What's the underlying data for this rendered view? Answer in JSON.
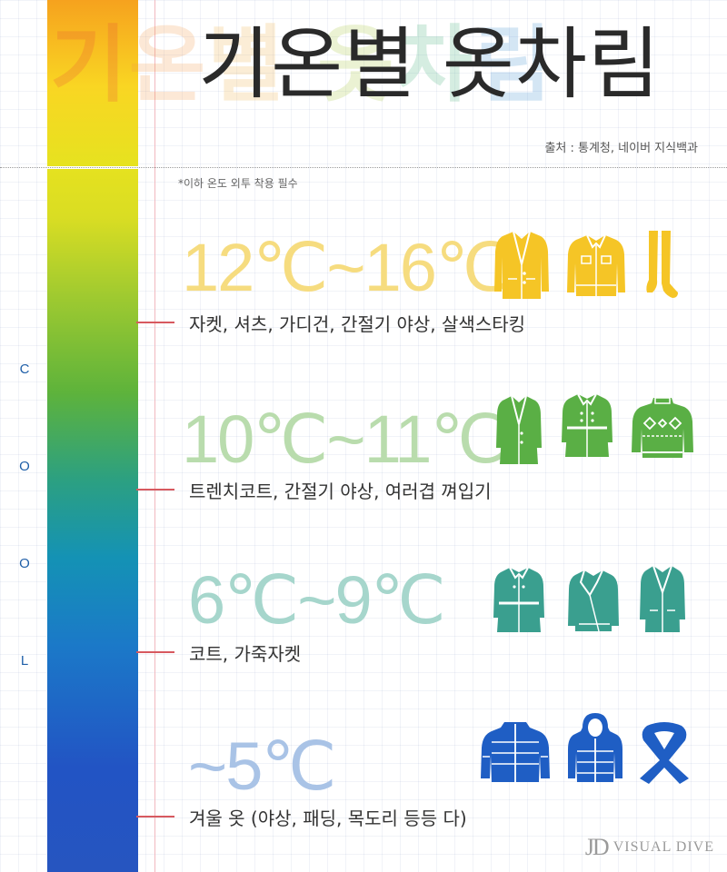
{
  "title": "기온별 옷차림",
  "title_shadow_chars": [
    "기",
    "온",
    "별",
    "옷",
    "차",
    "림"
  ],
  "source": "출처 : 통계청, 네이버 지식백과",
  "note": "*이하 온도 외투 착용 필수",
  "cool_letters": [
    "C",
    "O",
    "O",
    "L"
  ],
  "bands": [
    {
      "range": "12℃~16℃",
      "clothes": "자켓, 셔츠, 가디건, 간절기 야상, 살색스타킹",
      "color": "#f5c526",
      "label_color": "#f6dc7f",
      "icons": [
        "blazer-icon",
        "denim-jacket-icon",
        "stockings-icon"
      ]
    },
    {
      "range": "10℃~11℃",
      "clothes": "트렌치코트, 간절기 야상, 여러겹 껴입기",
      "color": "#5aaf45",
      "label_color": "#b9dcad",
      "icons": [
        "long-coat-icon",
        "trench-coat-icon",
        "knit-sweater-icon"
      ]
    },
    {
      "range": "6℃~9℃",
      "clothes": "코트, 가죽자켓",
      "color": "#3a9f8f",
      "label_color": "#a6d6cc",
      "icons": [
        "belted-coat-icon",
        "leather-jacket-icon",
        "overcoat-icon"
      ]
    },
    {
      "range": "~5℃",
      "clothes": "겨울 옷 (야상, 패딩, 목도리 등등 다)",
      "color": "#1f5ec4",
      "label_color": "#a9c3e6",
      "icons": [
        "puffer-jacket-icon",
        "hooded-parka-icon",
        "scarf-icon"
      ]
    }
  ],
  "logo": {
    "mark": "JD",
    "text": "VISUAL DIVE"
  }
}
